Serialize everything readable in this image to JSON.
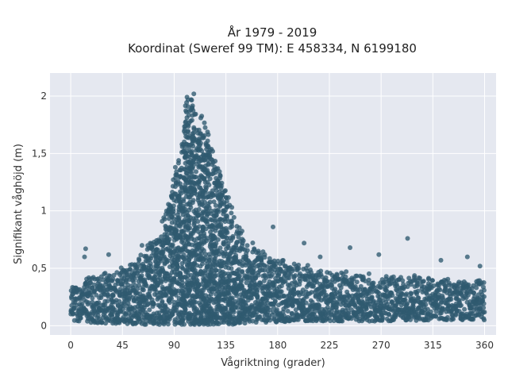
{
  "chart_data": {
    "type": "scatter",
    "title": "År 1979 - 2019",
    "subtitle": "Koordinat (Sweref 99 TM): E 458334, N 6199180",
    "xlabel": "Vågriktning (grader)",
    "ylabel": "Signifikant våghöjd (m)",
    "xlim": [
      -18,
      370
    ],
    "ylim": [
      -0.08,
      2.2
    ],
    "x_ticks": [
      0,
      45,
      90,
      135,
      180,
      225,
      270,
      315,
      360
    ],
    "x_tick_labels": [
      "0",
      "45",
      "90",
      "135",
      "180",
      "225",
      "270",
      "315",
      "360"
    ],
    "y_ticks": [
      0,
      0.5,
      1,
      1.5,
      2
    ],
    "y_tick_labels": [
      "0",
      "0,5",
      "1",
      "1,5",
      "2"
    ],
    "grid": true,
    "marker_color": "#2f5a70",
    "plot_background": "#e5e8f0",
    "envelope": {
      "x": [
        0,
        15,
        30,
        45,
        60,
        75,
        85,
        95,
        100,
        105,
        110,
        115,
        120,
        130,
        140,
        150,
        160,
        175,
        195,
        225,
        270,
        315,
        360
      ],
      "y_max": [
        0.35,
        0.42,
        0.46,
        0.52,
        0.62,
        0.82,
        1.1,
        1.55,
        2.0,
        2.08,
        1.8,
        1.85,
        1.68,
        1.38,
        1.05,
        0.8,
        0.7,
        0.6,
        0.55,
        0.48,
        0.45,
        0.42,
        0.4
      ],
      "y_min": [
        0.05,
        0.03,
        0.02,
        0.02,
        0.01,
        0.01,
        0.01,
        0.01,
        0.01,
        0.01,
        0.01,
        0.01,
        0.01,
        0.01,
        0.01,
        0.02,
        0.03,
        0.03,
        0.04,
        0.04,
        0.04,
        0.05,
        0.05
      ]
    },
    "outliers": [
      {
        "x": 13,
        "y": 0.67
      },
      {
        "x": 12,
        "y": 0.6
      },
      {
        "x": 33,
        "y": 0.62
      },
      {
        "x": 62,
        "y": 0.7
      },
      {
        "x": 176,
        "y": 0.86
      },
      {
        "x": 203,
        "y": 0.72
      },
      {
        "x": 217,
        "y": 0.6
      },
      {
        "x": 243,
        "y": 0.68
      },
      {
        "x": 268,
        "y": 0.62
      },
      {
        "x": 293,
        "y": 0.76
      },
      {
        "x": 322,
        "y": 0.57
      },
      {
        "x": 345,
        "y": 0.6
      },
      {
        "x": 356,
        "y": 0.52
      }
    ]
  }
}
